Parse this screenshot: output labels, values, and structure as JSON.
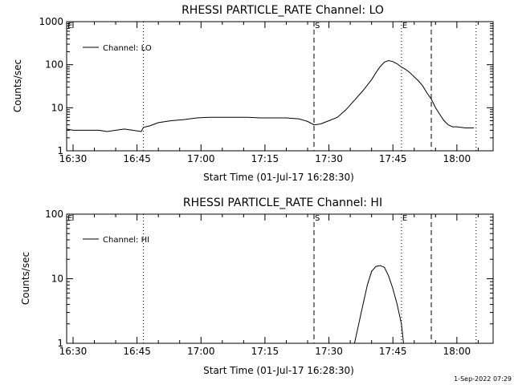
{
  "footer": {
    "timestamp": "1-Sep-2022 07:29"
  },
  "chart_data": [
    {
      "type": "line",
      "title": "RHESSI PARTICLE_RATE Channel: LO",
      "xlabel": "Start Time (01-Jul-17 16:28:30)",
      "ylabel": "Counts/sec",
      "yscale": "log",
      "ylim": [
        1,
        1000
      ],
      "xlim": [
        "16:28:30",
        "18:08:30"
      ],
      "x_ticks": [
        "16:30",
        "16:45",
        "17:00",
        "17:15",
        "17:30",
        "17:45",
        "18:00"
      ],
      "y_ticks": [
        "1",
        "10",
        "100",
        "1000"
      ],
      "legend": {
        "placement": "top-left",
        "entries": [
          "Channel: LO"
        ]
      },
      "markers": [
        {
          "label": "E",
          "time": "16:28:30",
          "style": "dotted"
        },
        {
          "label": "",
          "time": "16:46:30",
          "style": "dotted"
        },
        {
          "label": "S",
          "time": "17:26:30",
          "style": "dashed"
        },
        {
          "label": "E",
          "time": "17:47:00",
          "style": "dotted"
        },
        {
          "label": "",
          "time": "17:54:00",
          "style": "dashed"
        },
        {
          "label": "",
          "time": "18:04:30",
          "style": "dotted"
        }
      ],
      "series": [
        {
          "color": "#000000",
          "x": [
            "16:28:30",
            "16:30:00",
            "16:33:00",
            "16:36:00",
            "16:38:00",
            "16:40:00",
            "16:42:00",
            "16:44:00",
            "16:46:00",
            "16:46:30",
            "16:48:00",
            "16:50:00",
            "16:53:00",
            "16:56:00",
            "16:59:00",
            "17:02:00",
            "17:05:00",
            "17:08:00",
            "17:11:00",
            "17:14:00",
            "17:17:00",
            "17:20:00",
            "17:23:00",
            "17:25:00",
            "17:26:30",
            "17:28:00",
            "17:30:00",
            "17:32:00",
            "17:34:00",
            "17:36:00",
            "17:38:00",
            "17:40:00",
            "17:41:00",
            "17:42:00",
            "17:43:00",
            "17:44:00",
            "17:45:00",
            "17:46:00",
            "17:47:00",
            "17:48:00",
            "17:49:00",
            "17:50:00",
            "17:51:00",
            "17:52:00",
            "17:53:00",
            "17:54:00",
            "17:55:00",
            "17:56:00",
            "17:57:00",
            "17:58:00",
            "17:59:00",
            "18:00:00",
            "18:02:00",
            "18:04:00"
          ],
          "y": [
            3.2,
            3.0,
            3.0,
            3.0,
            2.8,
            3.0,
            3.2,
            3.0,
            2.8,
            3.5,
            3.8,
            4.5,
            5.0,
            5.3,
            5.8,
            6.0,
            6.0,
            6.0,
            6.0,
            5.8,
            5.8,
            5.8,
            5.5,
            4.8,
            4.0,
            4.2,
            5.0,
            6.0,
            9.0,
            15,
            25,
            45,
            65,
            90,
            115,
            125,
            118,
            105,
            88,
            78,
            65,
            52,
            42,
            32,
            22,
            16,
            10,
            7,
            5,
            4,
            3.6,
            3.6,
            3.4,
            3.4
          ]
        }
      ]
    },
    {
      "type": "line",
      "title": "RHESSI PARTICLE_RATE Channel: HI",
      "xlabel": "Start Time (01-Jul-17 16:28:30)",
      "ylabel": "Counts/sec",
      "yscale": "log",
      "ylim": [
        1,
        100
      ],
      "xlim": [
        "16:28:30",
        "18:08:30"
      ],
      "x_ticks": [
        "16:30",
        "16:45",
        "17:00",
        "17:15",
        "17:30",
        "17:45",
        "18:00"
      ],
      "y_ticks": [
        "1",
        "10",
        "100"
      ],
      "legend": {
        "placement": "top-left",
        "entries": [
          "Channel: HI"
        ]
      },
      "markers": [
        {
          "label": "E",
          "time": "16:28:30",
          "style": "dotted"
        },
        {
          "label": "",
          "time": "16:46:30",
          "style": "dotted"
        },
        {
          "label": "S",
          "time": "17:26:30",
          "style": "dashed"
        },
        {
          "label": "E",
          "time": "17:47:00",
          "style": "dotted"
        },
        {
          "label": "",
          "time": "17:54:00",
          "style": "dashed"
        },
        {
          "label": "",
          "time": "18:04:30",
          "style": "dotted"
        }
      ],
      "series": [
        {
          "color": "#000000",
          "x": [
            "17:36:00",
            "17:37:00",
            "17:38:00",
            "17:39:00",
            "17:40:00",
            "17:41:00",
            "17:42:00",
            "17:43:00",
            "17:44:00",
            "17:45:00",
            "17:46:00",
            "17:47:00",
            "17:47:30"
          ],
          "y": [
            1.0,
            2.0,
            4.0,
            8.0,
            13,
            15.5,
            16,
            15,
            11,
            7,
            4,
            2,
            1.0
          ]
        }
      ]
    }
  ]
}
